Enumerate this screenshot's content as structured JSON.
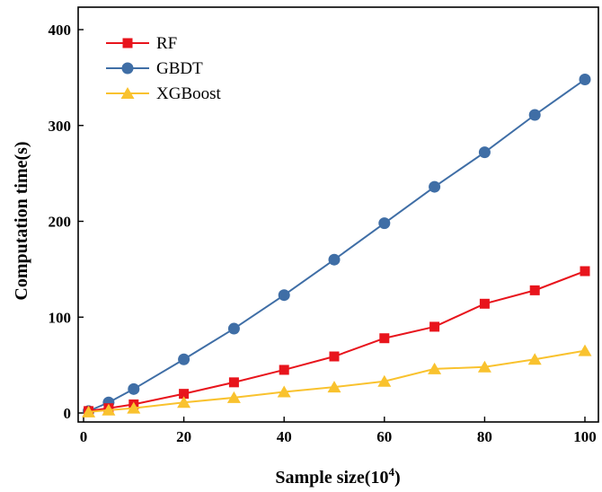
{
  "chart_data": {
    "type": "line",
    "xlabel": "Sample size(10",
    "xlabel_sup": "4",
    "xlabel_close": ")",
    "ylabel": "Computation time(s)",
    "xlim": [
      0,
      100
    ],
    "ylim": [
      0,
      400
    ],
    "xticks": [
      0,
      20,
      40,
      60,
      80,
      100
    ],
    "yticks": [
      0,
      100,
      200,
      300,
      400
    ],
    "grid": false,
    "legend_position": "top-left",
    "x": [
      1,
      5,
      10,
      20,
      30,
      40,
      50,
      60,
      70,
      80,
      90,
      100
    ],
    "series": [
      {
        "name": "RF",
        "color": "#e8141c",
        "marker": "square",
        "values": [
          2,
          5,
          9,
          20,
          32,
          45,
          59,
          78,
          90,
          114,
          128,
          148
        ]
      },
      {
        "name": "GBDT",
        "color": "#3f6ea6",
        "marker": "circle",
        "values": [
          2,
          11,
          25,
          56,
          88,
          123,
          160,
          198,
          236,
          272,
          311,
          348
        ]
      },
      {
        "name": "XGBoost",
        "color": "#f9c22e",
        "marker": "triangle",
        "values": [
          1,
          3,
          5,
          11,
          16,
          22,
          27,
          33,
          46,
          48,
          56,
          65
        ]
      }
    ]
  }
}
